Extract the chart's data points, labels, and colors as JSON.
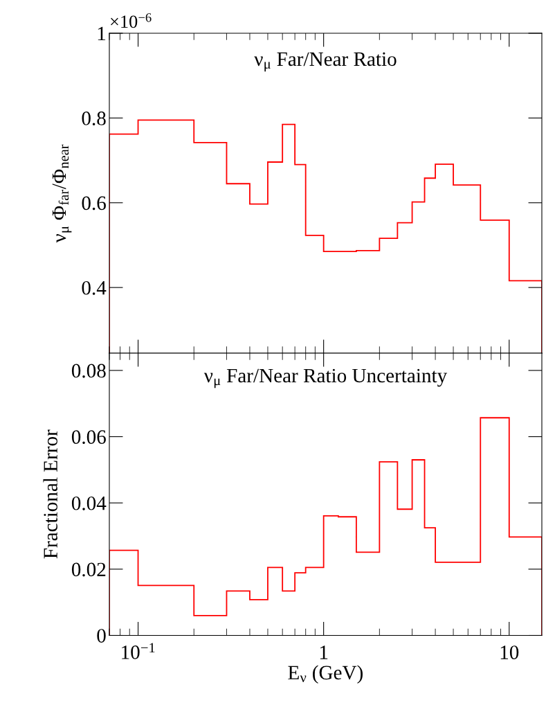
{
  "chart_data": [
    {
      "type": "histogram",
      "title": "ν$_{μ}$ Far/Near Ratio",
      "ylabel": "ν$_{μ}$ Φ$_{far}$/Φ$_{near}$",
      "annotations": [
        "×10$^{−6}$"
      ],
      "color": "#ff0000",
      "log": "x",
      "tick_labels": "y",
      "bins": [
        0.07,
        0.1,
        0.2,
        0.3,
        0.4,
        0.5,
        0.6,
        0.7,
        0.8,
        1.0,
        1.2,
        1.5,
        2.0,
        2.5,
        3.0,
        3.5,
        4.0,
        5.0,
        7.0,
        10.0,
        15.0
      ],
      "values": [
        0.762,
        0.795,
        0.742,
        0.645,
        0.597,
        0.696,
        0.785,
        0.69,
        0.523,
        0.485,
        0.485,
        0.487,
        0.516,
        0.553,
        0.602,
        0.658,
        0.691,
        0.642,
        0.559,
        0.416
      ],
      "xlim": [
        0.07,
        15
      ],
      "xticks": [
        0.1,
        1,
        10
      ],
      "ylim": [
        0.245,
        1
      ],
      "yticks": [
        0.4,
        0.6,
        0.8,
        1
      ]
    },
    {
      "type": "histogram",
      "title": "ν$_{μ}$ Far/Near Ratio Uncertainty",
      "xlabel": "E$_{ν}$ (GeV)",
      "ylabel": "Fractional Error",
      "color": "#ff0000",
      "log": "x",
      "bins": [
        0.07,
        0.1,
        0.2,
        0.3,
        0.4,
        0.5,
        0.6,
        0.7,
        0.8,
        1.0,
        1.2,
        1.5,
        2.0,
        2.5,
        3.0,
        3.5,
        4.0,
        5.0,
        7.0,
        10.0,
        15.0
      ],
      "values": [
        0.0257,
        0.0151,
        0.006,
        0.0134,
        0.0108,
        0.0205,
        0.0134,
        0.0189,
        0.0205,
        0.0361,
        0.0358,
        0.0251,
        0.0524,
        0.0381,
        0.053,
        0.0325,
        0.0221,
        0.0221,
        0.0657,
        0.0297
      ],
      "xlim": [
        0.07,
        15
      ],
      "xticks": [
        {
          "value": 0.1,
          "label": "10$^{−1}$"
        },
        1,
        10
      ],
      "ylim": [
        0,
        0.0852
      ],
      "yticks": [
        0,
        0.02,
        0.04,
        0.06,
        0.08
      ]
    }
  ]
}
